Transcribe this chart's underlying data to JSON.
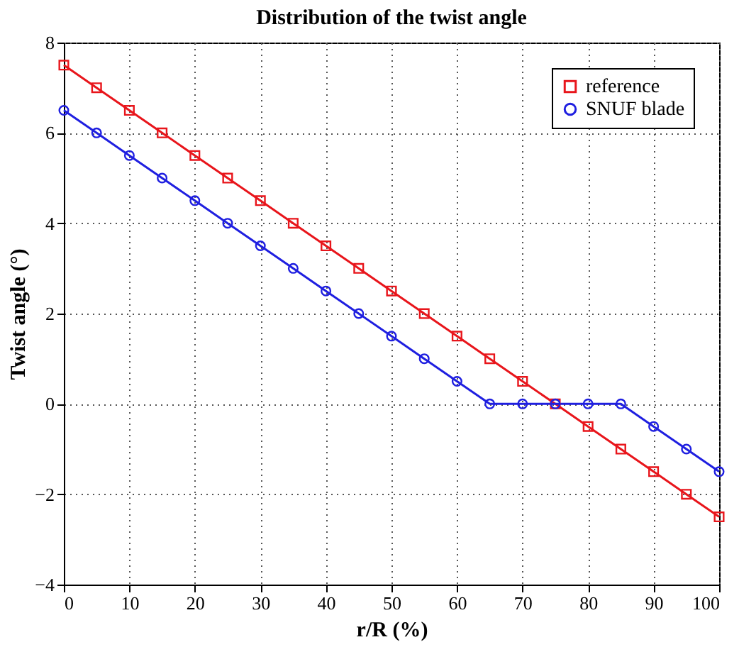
{
  "chart_data": {
    "type": "line",
    "title": "Distribution of the twist angle",
    "xlabel": "r/R (%)",
    "ylabel": "Twist angle (°)",
    "x": [
      0,
      5,
      10,
      15,
      20,
      25,
      30,
      35,
      40,
      45,
      50,
      55,
      60,
      65,
      70,
      75,
      80,
      85,
      90,
      95,
      100
    ],
    "series": [
      {
        "name": "reference",
        "color": "#e8151b",
        "marker": "square",
        "values": [
          7.5,
          7,
          6.5,
          6,
          5.5,
          5,
          4.5,
          4,
          3.5,
          3,
          2.5,
          2,
          1.5,
          1,
          0.5,
          0,
          -0.5,
          -1,
          -1.5,
          -2,
          -2.5
        ]
      },
      {
        "name": "SNUF blade",
        "color": "#1f1fe0",
        "marker": "circle",
        "values": [
          6.5,
          6,
          5.5,
          5,
          4.5,
          4,
          3.5,
          3,
          2.5,
          2,
          1.5,
          1,
          0.5,
          0,
          0,
          0,
          0,
          0,
          -0.5,
          -1,
          -1.5
        ]
      }
    ],
    "xlim": [
      0,
      100
    ],
    "xticks": [
      0,
      10,
      20,
      30,
      40,
      50,
      60,
      70,
      80,
      90,
      100
    ],
    "ylim": [
      -4,
      8
    ],
    "yticks": [
      -4,
      -2,
      0,
      2,
      4,
      6,
      8
    ],
    "grid": true,
    "legend": "top right",
    "line_style": "solid"
  }
}
